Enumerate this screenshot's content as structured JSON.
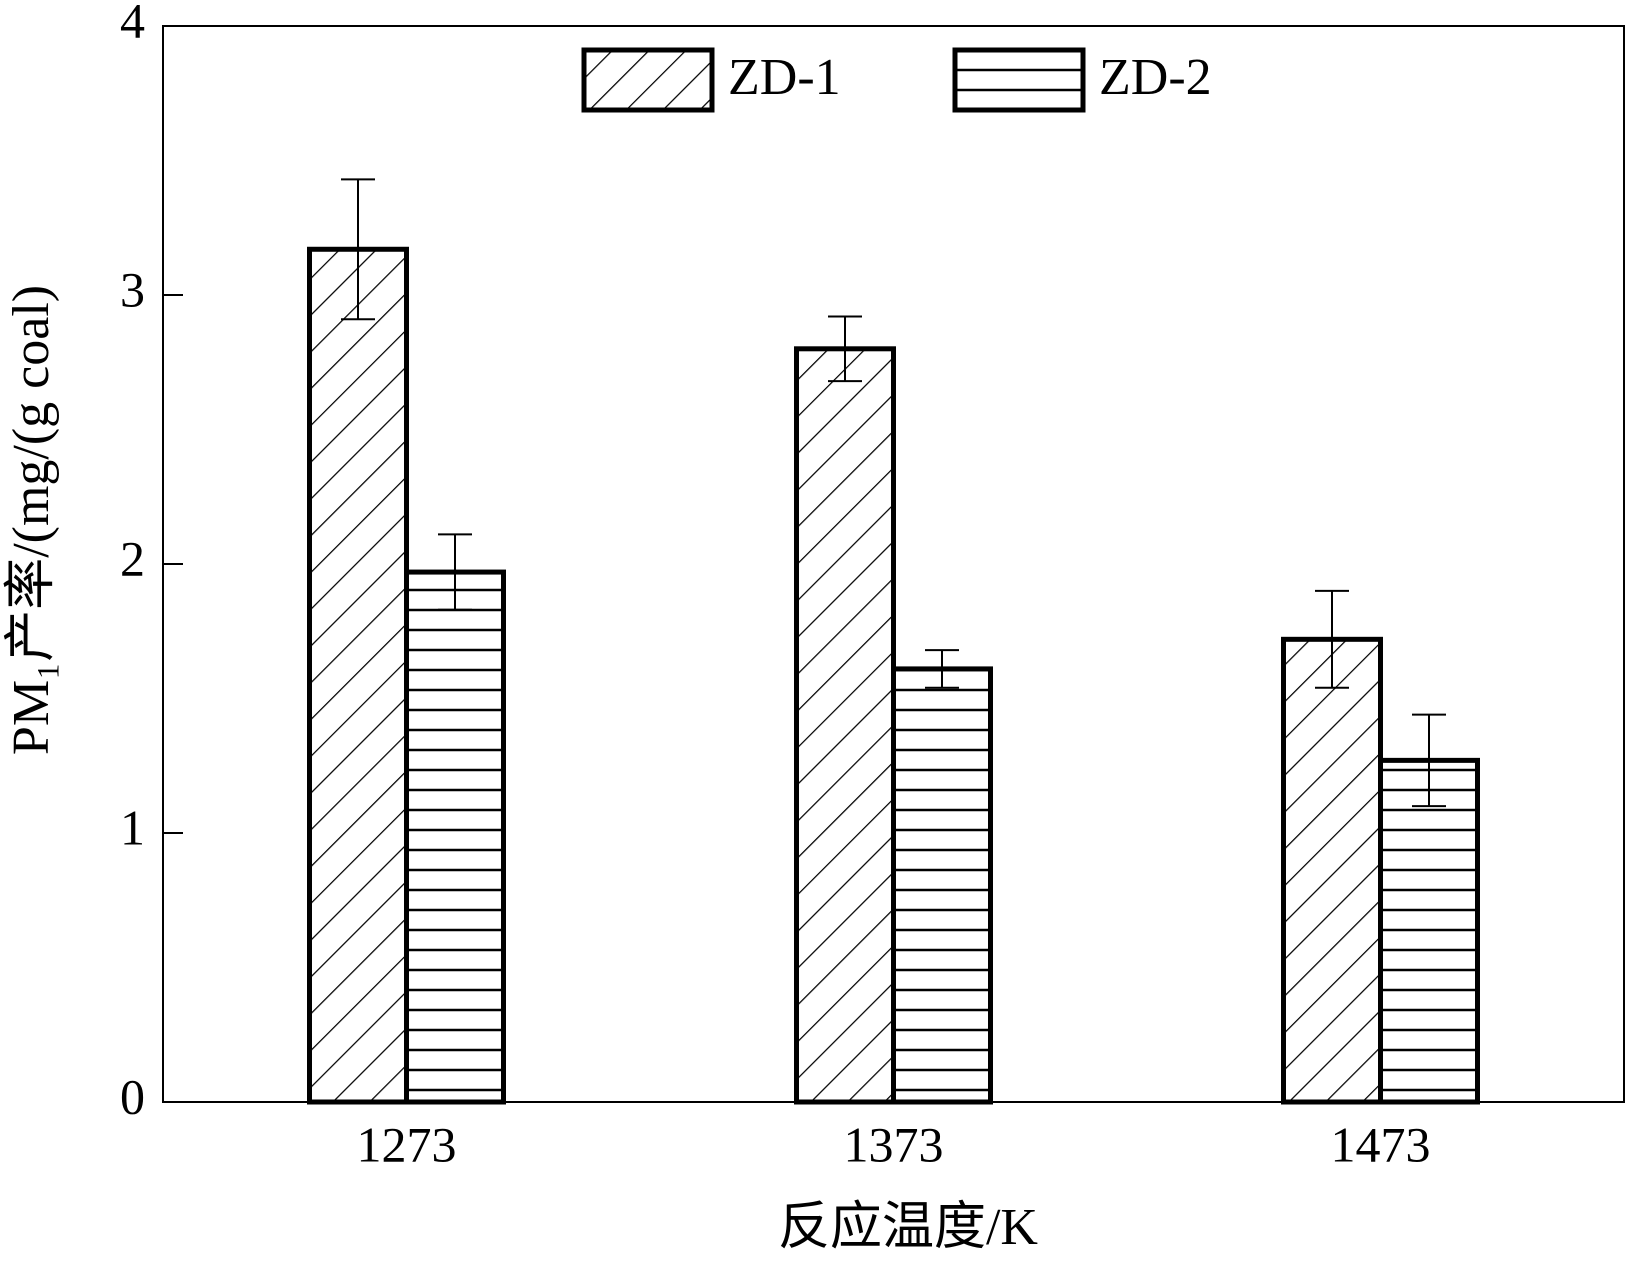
{
  "chart_data": {
    "type": "bar",
    "x_label": "反应温度/K",
    "y_label": "PM₁产率/(mg/(g coal)",
    "categories": [
      "1273",
      "1373",
      "1473"
    ],
    "series": [
      {
        "name": "ZD-1",
        "color": "#000000",
        "pattern": "diagonal",
        "values": [
          3.17,
          2.8,
          1.72
        ],
        "errors": [
          0.26,
          0.12,
          0.18
        ]
      },
      {
        "name": "ZD-2",
        "color": "#000000",
        "pattern": "horizontal",
        "values": [
          1.97,
          1.61,
          1.27
        ],
        "errors": [
          0.14,
          0.07,
          0.17
        ]
      }
    ],
    "ylim": [
      0,
      4
    ],
    "yticks": [
      0,
      1,
      2,
      3,
      4
    ],
    "legend": "top"
  }
}
